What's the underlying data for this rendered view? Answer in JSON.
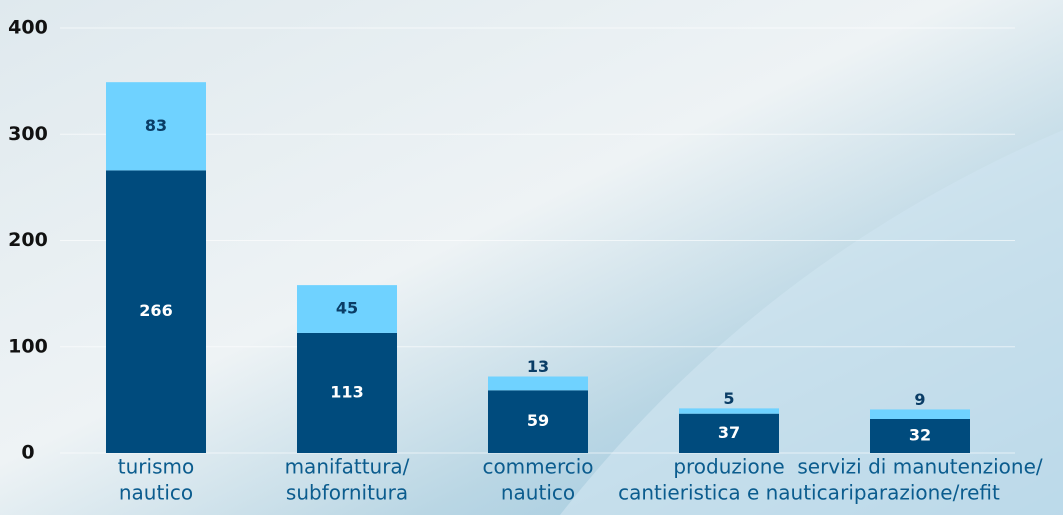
{
  "chart_data": {
    "type": "stacked-bar",
    "categories": [
      [
        "turismo",
        "nautico"
      ],
      [
        "manifattura/",
        "subfornitura"
      ],
      [
        "commercio",
        "nautico"
      ],
      [
        "produzione",
        "cantieristica e nautica"
      ],
      [
        "servizi di manutenzione/",
        "riparazione/refit"
      ]
    ],
    "series": [
      {
        "color": "#004b7d",
        "values": [
          266,
          113,
          59,
          37,
          32
        ]
      },
      {
        "color": "#6fd2ff",
        "values": [
          83,
          45,
          13,
          5,
          9
        ]
      }
    ],
    "ylim": [
      0,
      400
    ],
    "yticks": [
      0,
      100,
      200,
      300,
      400
    ],
    "grid": true
  }
}
